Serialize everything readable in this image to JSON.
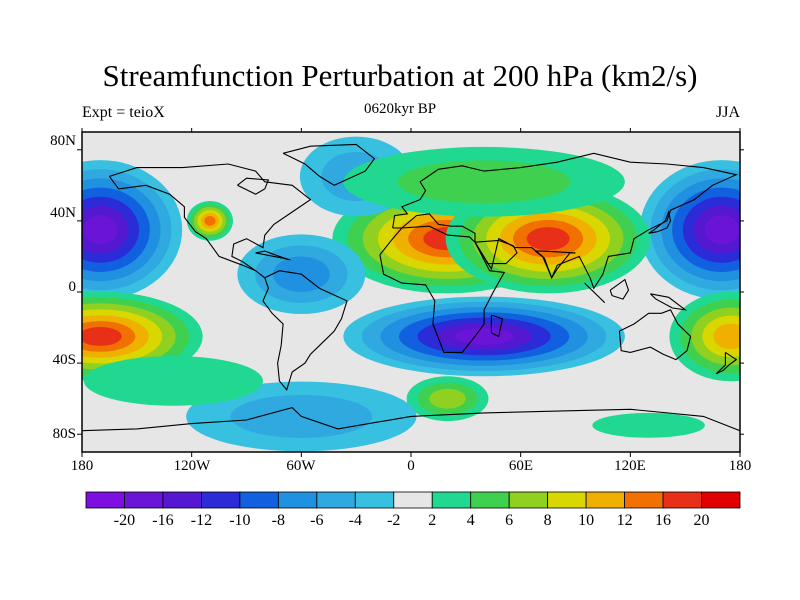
{
  "title": "Streamfunction Perturbation at 200 hPa (km2/s)",
  "subtitle": "0620kyr BP",
  "left_label": "Expt = teioX",
  "right_label": "JJA",
  "y_ticks": [
    "80N",
    "40N",
    "0",
    "40S",
    "80S"
  ],
  "x_ticks": [
    "180",
    "120W",
    "60W",
    "0",
    "60E",
    "120E",
    "180"
  ],
  "colorbar": {
    "labels": [
      "-20",
      "-16",
      "-12",
      "-10",
      "-8",
      "-6",
      "-4",
      "-2",
      "2",
      "4",
      "6",
      "8",
      "10",
      "12",
      "16",
      "20"
    ],
    "colors": [
      "#7d0fe0",
      "#6a14d8",
      "#5318d0",
      "#2b2bd8",
      "#1060e0",
      "#2090e0",
      "#30a8e0",
      "#38c0e0",
      "#e6e6e6",
      "#20d890",
      "#40d050",
      "#90d020",
      "#d8d800",
      "#f0b000",
      "#f07000",
      "#e83018",
      "#e00000"
    ]
  },
  "chart_data": {
    "type": "heatmap",
    "title": "Streamfunction Perturbation at 200 hPa (km2/s)",
    "subtitle": "0620kyr BP",
    "x_range": [
      -180,
      180
    ],
    "y_range": [
      -90,
      90
    ],
    "levels": [
      -20,
      -16,
      -12,
      -10,
      -8,
      -6,
      -4,
      -2,
      2,
      4,
      6,
      8,
      10,
      12,
      16,
      20
    ],
    "features": [
      {
        "lon": -170,
        "lat": 35,
        "value": -18
      },
      {
        "lon": 170,
        "lat": 35,
        "value": -18
      },
      {
        "lon": 20,
        "lat": 30,
        "value": 18
      },
      {
        "lon": 75,
        "lat": 30,
        "value": 20
      },
      {
        "lon": -170,
        "lat": -25,
        "value": 18
      },
      {
        "lon": 175,
        "lat": -25,
        "value": 12
      },
      {
        "lon": 40,
        "lat": -25,
        "value": -18
      },
      {
        "lon": -110,
        "lat": 40,
        "value": 16
      },
      {
        "lon": -60,
        "lat": 10,
        "value": -6
      },
      {
        "lon": -30,
        "lat": 65,
        "value": -5
      },
      {
        "lon": 40,
        "lat": 62,
        "value": 5
      },
      {
        "lon": 20,
        "lat": -60,
        "value": 8
      },
      {
        "lon": -60,
        "lat": -70,
        "value": -5
      },
      {
        "lon": -130,
        "lat": -50,
        "value": 4
      },
      {
        "lon": 130,
        "lat": -75,
        "value": 4
      }
    ]
  }
}
